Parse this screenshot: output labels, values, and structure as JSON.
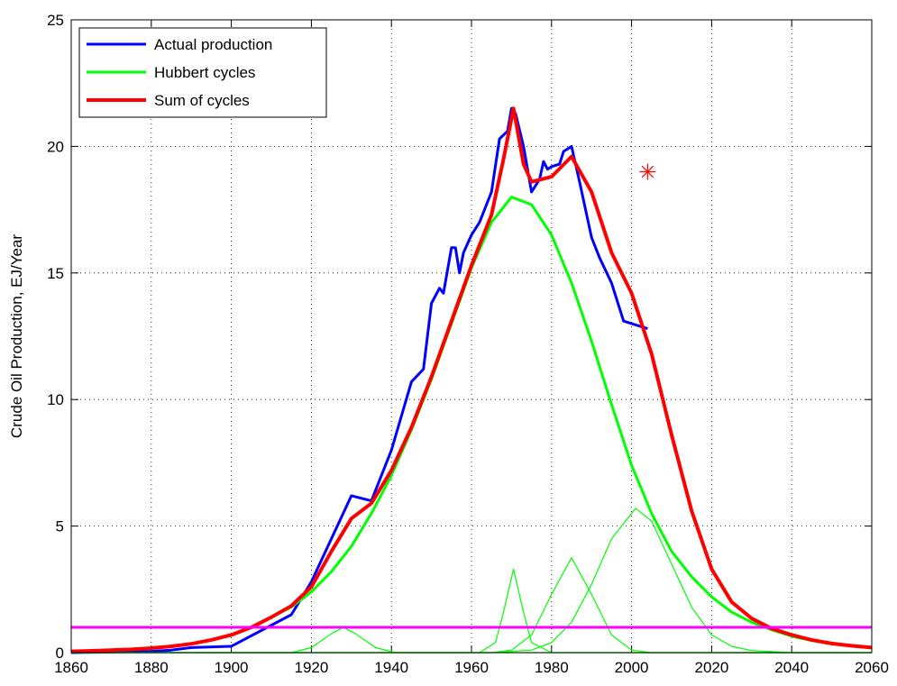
{
  "chart_data": {
    "type": "line",
    "ylabel": "Crude Oil Production, EJ/Year",
    "xlim": [
      1860,
      2060
    ],
    "xticks": [
      1860,
      1880,
      1900,
      1920,
      1940,
      1960,
      1980,
      2000,
      2020,
      2040,
      2060
    ],
    "ylim": [
      0,
      25
    ],
    "yticks": [
      0,
      5,
      10,
      15,
      20,
      25
    ],
    "grid": true,
    "legend": "upper-left",
    "series": [
      {
        "name": "Actual production",
        "color": "#0000ff",
        "line_width": 3,
        "x": [
          1860,
          1880,
          1885,
          1890,
          1900,
          1915,
          1920,
          1925,
          1930,
          1935,
          1940,
          1945,
          1948,
          1950,
          1952,
          1953,
          1955,
          1956,
          1957,
          1958,
          1960,
          1962,
          1965,
          1967,
          1969,
          1970,
          1971,
          1973,
          1975,
          1977,
          1978,
          1979,
          1980,
          1982,
          1983,
          1985,
          1987,
          1990,
          1992,
          1995,
          1998,
          2004
        ],
        "values": [
          0,
          0.05,
          0.1,
          0.2,
          0.25,
          1.5,
          2.8,
          4.5,
          6.2,
          6.0,
          8.0,
          10.7,
          11.2,
          13.8,
          14.4,
          14.2,
          16.0,
          16.0,
          15.0,
          15.8,
          16.5,
          17.0,
          18.2,
          20.3,
          20.6,
          21.5,
          21.3,
          20.0,
          18.2,
          18.7,
          19.4,
          19.1,
          19.2,
          19.3,
          19.8,
          20.0,
          18.6,
          16.4,
          15.6,
          14.6,
          13.1,
          12.8
        ]
      },
      {
        "name": "Hubbert cycles",
        "color": "#00ff00",
        "line_width": 3,
        "x": [
          1860,
          1865,
          1870,
          1875,
          1880,
          1885,
          1890,
          1895,
          1900,
          1905,
          1910,
          1915,
          1920,
          1925,
          1930,
          1935,
          1940,
          1945,
          1950,
          1955,
          1960,
          1965,
          1970,
          1975,
          1980,
          1985,
          1990,
          1995,
          2000,
          2005,
          2010,
          2015,
          2020,
          2025,
          2030,
          2035,
          2040,
          2045,
          2050,
          2055,
          2060
        ],
        "values": [
          0.05,
          0.07,
          0.1,
          0.13,
          0.18,
          0.25,
          0.35,
          0.5,
          0.7,
          1.0,
          1.4,
          1.8,
          2.4,
          3.2,
          4.2,
          5.5,
          7.0,
          8.8,
          10.8,
          13.0,
          15.2,
          17.0,
          18.0,
          17.7,
          16.5,
          14.6,
          12.3,
          9.8,
          7.4,
          5.5,
          4.0,
          3.0,
          2.2,
          1.6,
          1.2,
          0.9,
          0.65,
          0.48,
          0.35,
          0.26,
          0.19
        ]
      },
      {
        "color": "#00ff00",
        "line_width": 1.2,
        "x": [
          1860,
          1915,
          1920,
          1925,
          1928,
          1931,
          1936,
          1941,
          2060
        ],
        "values": [
          0,
          0,
          0.2,
          0.75,
          1.0,
          0.75,
          0.2,
          0,
          0
        ]
      },
      {
        "color": "#00ff00",
        "line_width": 1.2,
        "x": [
          1860,
          1962,
          1966,
          1968,
          1970.5,
          1973,
          1975,
          1980,
          2060
        ],
        "values": [
          0,
          0,
          0.4,
          1.6,
          3.3,
          1.6,
          0.4,
          0,
          0
        ]
      },
      {
        "color": "#00ff00",
        "line_width": 1.2,
        "x": [
          1860,
          1965,
          1970,
          1975,
          1980,
          1985,
          1990,
          1995,
          2000,
          2005,
          2060
        ],
        "values": [
          0,
          0,
          0.1,
          0.7,
          2.3,
          3.75,
          2.3,
          0.7,
          0.1,
          0,
          0
        ]
      },
      {
        "color": "#00ff00",
        "line_width": 1.2,
        "x": [
          1860,
          1965,
          1975,
          1980,
          1985,
          1990,
          1995,
          2001,
          2005,
          2010,
          2015,
          2020,
          2025,
          2030,
          2040,
          2060
        ],
        "values": [
          0,
          0,
          0.1,
          0.4,
          1.2,
          2.7,
          4.5,
          5.7,
          5.2,
          3.5,
          1.8,
          0.7,
          0.25,
          0.08,
          0,
          0
        ]
      },
      {
        "name": "Sum of cycles",
        "color": "#ff0000",
        "line_width": 4,
        "x": [
          1860,
          1865,
          1870,
          1875,
          1880,
          1885,
          1890,
          1895,
          1900,
          1905,
          1910,
          1915,
          1920,
          1925,
          1930,
          1935,
          1940,
          1945,
          1950,
          1955,
          1960,
          1965,
          1968,
          1970.5,
          1973,
          1975,
          1980,
          1985,
          1990,
          1995,
          2000,
          2005,
          2010,
          2015,
          2020,
          2025,
          2030,
          2035,
          2040,
          2045,
          2050,
          2055,
          2060
        ],
        "values": [
          0.05,
          0.07,
          0.1,
          0.13,
          0.18,
          0.25,
          0.35,
          0.5,
          0.7,
          1.0,
          1.4,
          1.85,
          2.6,
          4.0,
          5.3,
          5.9,
          7.2,
          8.9,
          10.9,
          13.1,
          15.3,
          17.3,
          19.5,
          21.5,
          19.3,
          18.6,
          18.8,
          19.6,
          18.2,
          15.8,
          14.2,
          11.8,
          8.6,
          5.6,
          3.3,
          2.0,
          1.35,
          0.95,
          0.7,
          0.5,
          0.36,
          0.27,
          0.2
        ]
      },
      {
        "color": "#ff00ff",
        "line_width": 3,
        "x": [
          1860,
          2060
        ],
        "values": [
          1,
          1
        ]
      }
    ],
    "points": [
      {
        "x": 2004,
        "y": 19,
        "color": "#ff0000"
      }
    ]
  }
}
